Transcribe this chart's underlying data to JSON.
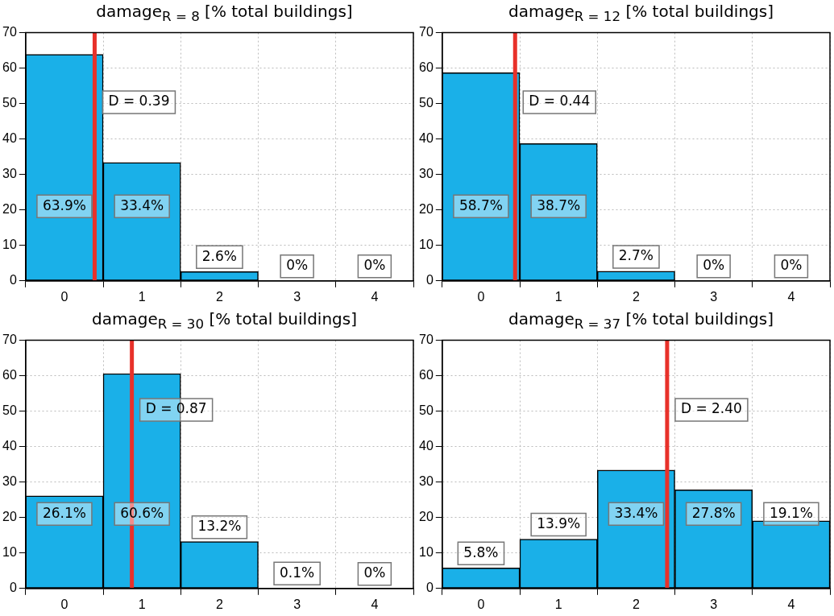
{
  "chart_data": [
    {
      "type": "bar",
      "title": "damage$_{R = 8}$ [% total buildings]",
      "x": [
        0,
        1,
        2,
        3,
        4
      ],
      "xlim": [
        -0.5,
        4.5
      ],
      "xticks": [
        0,
        1,
        2,
        3,
        4
      ],
      "ylim": [
        0,
        70
      ],
      "yticks": [
        0,
        10,
        20,
        30,
        40,
        50,
        60,
        70
      ],
      "grid": true,
      "legend": false,
      "color": "#1ab0e8",
      "values": [
        63.9,
        33.4,
        2.6,
        0,
        0
      ],
      "value_labels": [
        "63.9%",
        "33.4%",
        "2.6%",
        "0%",
        "0%"
      ],
      "ref_lines": [
        {
          "axis": "x",
          "value": 0.39,
          "label": "D = 0.39",
          "color": "#e8312a"
        }
      ]
    },
    {
      "type": "bar",
      "title": "damage$_{R = 12}$ [% total buildings]",
      "x": [
        0,
        1,
        2,
        3,
        4
      ],
      "xlim": [
        -0.5,
        4.5
      ],
      "xticks": [
        0,
        1,
        2,
        3,
        4
      ],
      "ylim": [
        0,
        70
      ],
      "yticks": [
        0,
        10,
        20,
        30,
        40,
        50,
        60,
        70
      ],
      "grid": true,
      "legend": false,
      "color": "#1ab0e8",
      "values": [
        58.7,
        38.7,
        2.7,
        0,
        0
      ],
      "value_labels": [
        "58.7%",
        "38.7%",
        "2.7%",
        "0%",
        "0%"
      ],
      "ref_lines": [
        {
          "axis": "x",
          "value": 0.44,
          "label": "D = 0.44",
          "color": "#e8312a"
        }
      ]
    },
    {
      "type": "bar",
      "title": "damage$_{R = 30}$ [% total buildings]",
      "x": [
        0,
        1,
        2,
        3,
        4
      ],
      "xlim": [
        -0.5,
        4.5
      ],
      "xticks": [
        0,
        1,
        2,
        3,
        4
      ],
      "ylim": [
        0,
        70
      ],
      "yticks": [
        0,
        10,
        20,
        30,
        40,
        50,
        60,
        70
      ],
      "grid": true,
      "legend": false,
      "color": "#1ab0e8",
      "values": [
        26.1,
        60.6,
        13.2,
        0.1,
        0
      ],
      "value_labels": [
        "26.1%",
        "60.6%",
        "13.2%",
        "0.1%",
        "0%"
      ],
      "ref_lines": [
        {
          "axis": "x",
          "value": 0.87,
          "label": "D = 0.87",
          "color": "#e8312a"
        }
      ]
    },
    {
      "type": "bar",
      "title": "damage$_{R = 37}$ [% total buildings]",
      "x": [
        0,
        1,
        2,
        3,
        4
      ],
      "xlim": [
        -0.5,
        4.5
      ],
      "xticks": [
        0,
        1,
        2,
        3,
        4
      ],
      "ylim": [
        0,
        70
      ],
      "yticks": [
        0,
        10,
        20,
        30,
        40,
        50,
        60,
        70
      ],
      "grid": true,
      "legend": false,
      "color": "#1ab0e8",
      "values": [
        5.8,
        13.9,
        33.4,
        27.8,
        19.1
      ],
      "value_labels": [
        "5.8%",
        "13.9%",
        "33.4%",
        "27.8%",
        "19.1%"
      ],
      "ref_lines": [
        {
          "axis": "x",
          "value": 2.4,
          "label": "D = 2.40",
          "color": "#e8312a"
        }
      ]
    }
  ]
}
